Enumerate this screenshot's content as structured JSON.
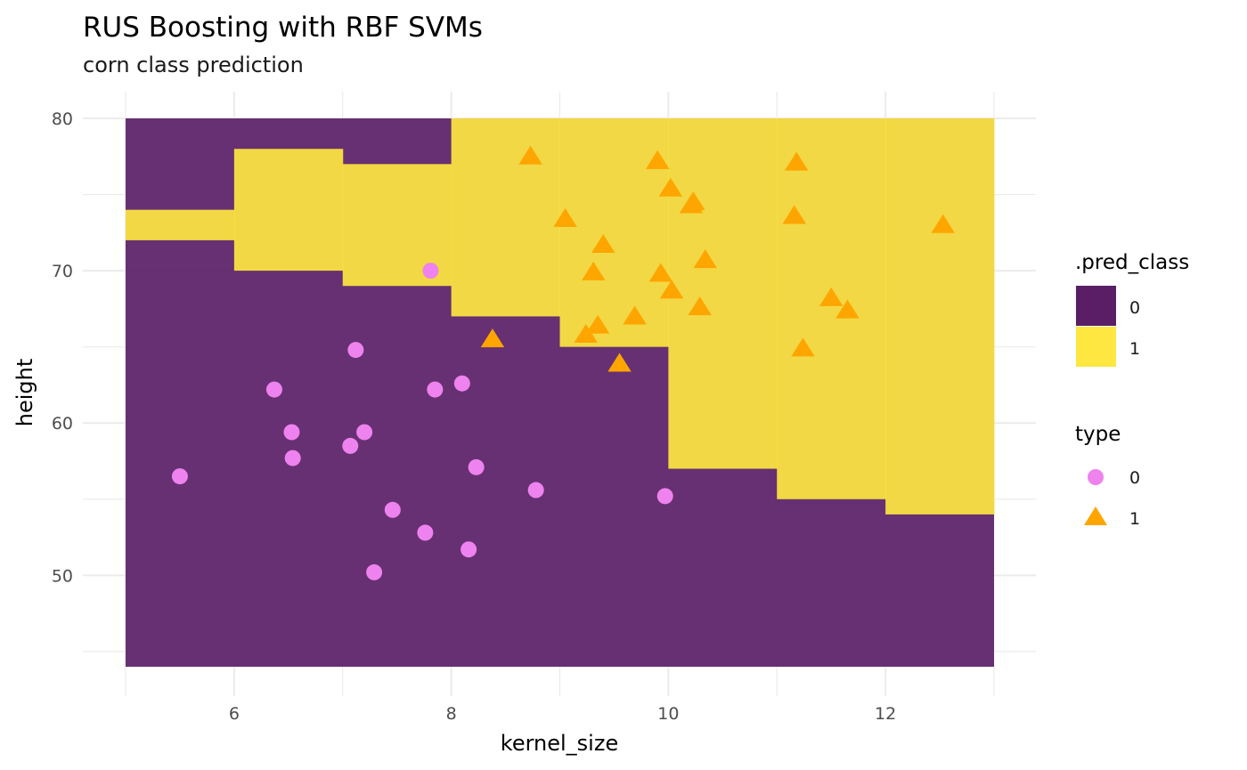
{
  "chart_data": {
    "type": "scatter",
    "title": "RUS Boosting with RBF SVMs",
    "subtitle": "corn class prediction",
    "xlabel": "kernel_size",
    "ylabel": "height",
    "xlim": [
      5,
      13
    ],
    "ylim": [
      44,
      80
    ],
    "x_ticks": [
      6,
      8,
      10,
      12
    ],
    "y_ticks": [
      50,
      60,
      70,
      80
    ],
    "x_tick_labels": [
      "6",
      "8",
      "10",
      "12"
    ],
    "y_tick_labels": [
      "50",
      "60",
      "70",
      "80"
    ],
    "grid": true,
    "colors": {
      "pred_0": "#5a1e66",
      "pred_1": "#fde740",
      "type_0": "#ee82ee",
      "type_1": "#ffa500",
      "grid": "#ebebeb"
    },
    "fill_legend": {
      "title": ".pred_class",
      "items": [
        {
          "label": "0",
          "color": "#5a1e66"
        },
        {
          "label": "1",
          "color": "#fde740"
        }
      ]
    },
    "point_legend": {
      "title": "type",
      "items": [
        {
          "label": "0",
          "shape": "circle",
          "color": "#ee82ee"
        },
        {
          "label": "1",
          "shape": "triangle",
          "color": "#ffa500"
        }
      ]
    },
    "prediction_regions": [
      {
        "x": [
          5,
          6
        ],
        "y_min": 72,
        "y_max": 74,
        "pred_class": "1"
      },
      {
        "x": [
          6,
          7
        ],
        "y_min": 70,
        "y_max": 78,
        "pred_class": "1"
      },
      {
        "x": [
          7,
          8
        ],
        "y_min": 69,
        "y_max": 77,
        "pred_class": "1"
      },
      {
        "x": [
          8,
          9
        ],
        "y_min": 67,
        "y_max": 80,
        "pred_class": "1"
      },
      {
        "x": [
          9,
          10
        ],
        "y_min": 65,
        "y_max": 80,
        "pred_class": "1"
      },
      {
        "x": [
          10,
          11
        ],
        "y_min": 57,
        "y_max": 80,
        "pred_class": "1"
      },
      {
        "x": [
          11,
          12
        ],
        "y_min": 55,
        "y_max": 80,
        "pred_class": "1"
      },
      {
        "x": [
          12,
          13
        ],
        "y_min": 54,
        "y_max": 80,
        "pred_class": "1"
      }
    ],
    "series": [
      {
        "name": "0",
        "shape": "circle",
        "points": [
          [
            5.5,
            56.5
          ],
          [
            6.37,
            62.2
          ],
          [
            6.53,
            59.4
          ],
          [
            6.54,
            57.7
          ],
          [
            7.07,
            58.5
          ],
          [
            7.12,
            64.8
          ],
          [
            7.2,
            59.4
          ],
          [
            7.29,
            50.2
          ],
          [
            7.46,
            54.3
          ],
          [
            7.76,
            52.8
          ],
          [
            7.81,
            70.0
          ],
          [
            7.85,
            62.2
          ],
          [
            8.1,
            62.6
          ],
          [
            8.16,
            51.7
          ],
          [
            8.23,
            57.1
          ],
          [
            8.78,
            55.6
          ],
          [
            9.97,
            55.2
          ]
        ]
      },
      {
        "name": "1",
        "shape": "triangle",
        "points": [
          [
            8.38,
            65.5
          ],
          [
            8.73,
            77.5
          ],
          [
            9.05,
            73.4
          ],
          [
            9.24,
            65.8
          ],
          [
            9.31,
            69.9
          ],
          [
            9.35,
            66.4
          ],
          [
            9.4,
            71.7
          ],
          [
            9.55,
            63.9
          ],
          [
            9.69,
            67.0
          ],
          [
            9.9,
            77.2
          ],
          [
            9.93,
            69.8
          ],
          [
            10.02,
            75.4
          ],
          [
            10.03,
            68.7
          ],
          [
            10.21,
            74.3
          ],
          [
            10.23,
            74.5
          ],
          [
            10.29,
            67.6
          ],
          [
            10.34,
            70.7
          ],
          [
            11.16,
            73.6
          ],
          [
            11.18,
            77.1
          ],
          [
            11.24,
            64.9
          ],
          [
            11.5,
            68.2
          ],
          [
            11.65,
            67.4
          ],
          [
            12.53,
            73.0
          ]
        ]
      }
    ]
  }
}
